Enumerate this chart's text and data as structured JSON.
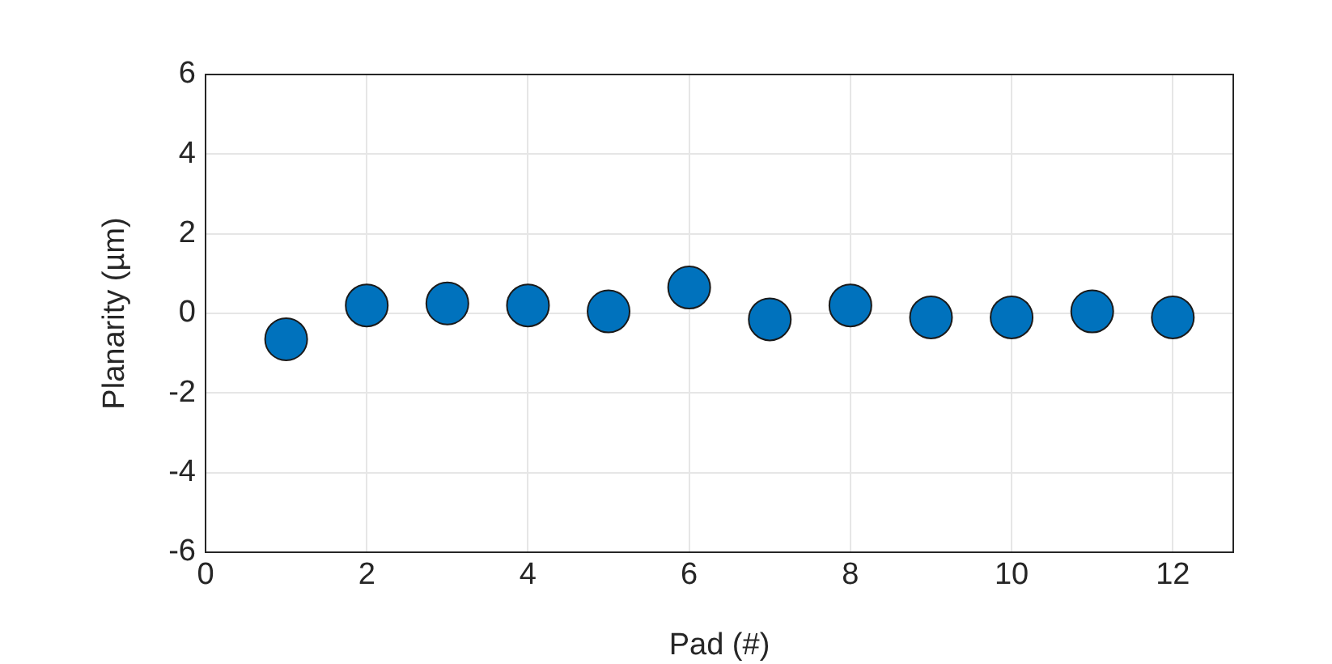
{
  "chart_data": {
    "type": "scatter",
    "xlabel": "Pad (#)",
    "ylabel": "Planarity (µm)",
    "x": [
      1,
      2,
      3,
      4,
      5,
      6,
      7,
      8,
      9,
      10,
      11,
      12
    ],
    "series": [
      {
        "color": "#0072bd",
        "values": [
          -0.65,
          0.2,
          0.25,
          0.2,
          0.05,
          0.65,
          -0.15,
          0.2,
          -0.1,
          -0.1,
          0.05,
          -0.1
        ]
      }
    ],
    "xlim": [
      0,
      12.75
    ],
    "xticks": [
      0,
      2,
      4,
      6,
      8,
      10,
      12
    ],
    "ylim": [
      -6,
      6
    ],
    "yticks": [
      -6,
      -4,
      -2,
      0,
      2,
      4,
      6
    ],
    "grid": true,
    "marker": "circle",
    "legend": false
  }
}
